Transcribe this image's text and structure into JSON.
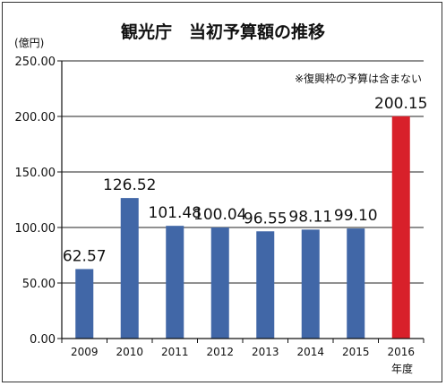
{
  "chart_data": {
    "type": "bar",
    "title": "観光庁　当初予算額の推移",
    "ylabel": "(億円)",
    "xlabel": "年度",
    "note": "※復興枠の予算は含まない",
    "categories": [
      "2009",
      "2010",
      "2011",
      "2012",
      "2013",
      "2014",
      "2015",
      "2016"
    ],
    "values": [
      62.57,
      126.52,
      101.48,
      100.04,
      96.55,
      98.11,
      99.1,
      200.15
    ],
    "value_labels": [
      "62.57",
      "126.52",
      "101.48",
      "100.04",
      "96.55",
      "98.11",
      "99.10",
      "200.15"
    ],
    "yticks": [
      "0.00",
      "50.00",
      "100.00",
      "150.00",
      "200.00",
      "250.00"
    ],
    "ylim": [
      0,
      250
    ],
    "grid": true,
    "colors": {
      "default_bar": "#4167a7",
      "highlight_bar": "#d8202a"
    },
    "highlight_index": 7
  }
}
